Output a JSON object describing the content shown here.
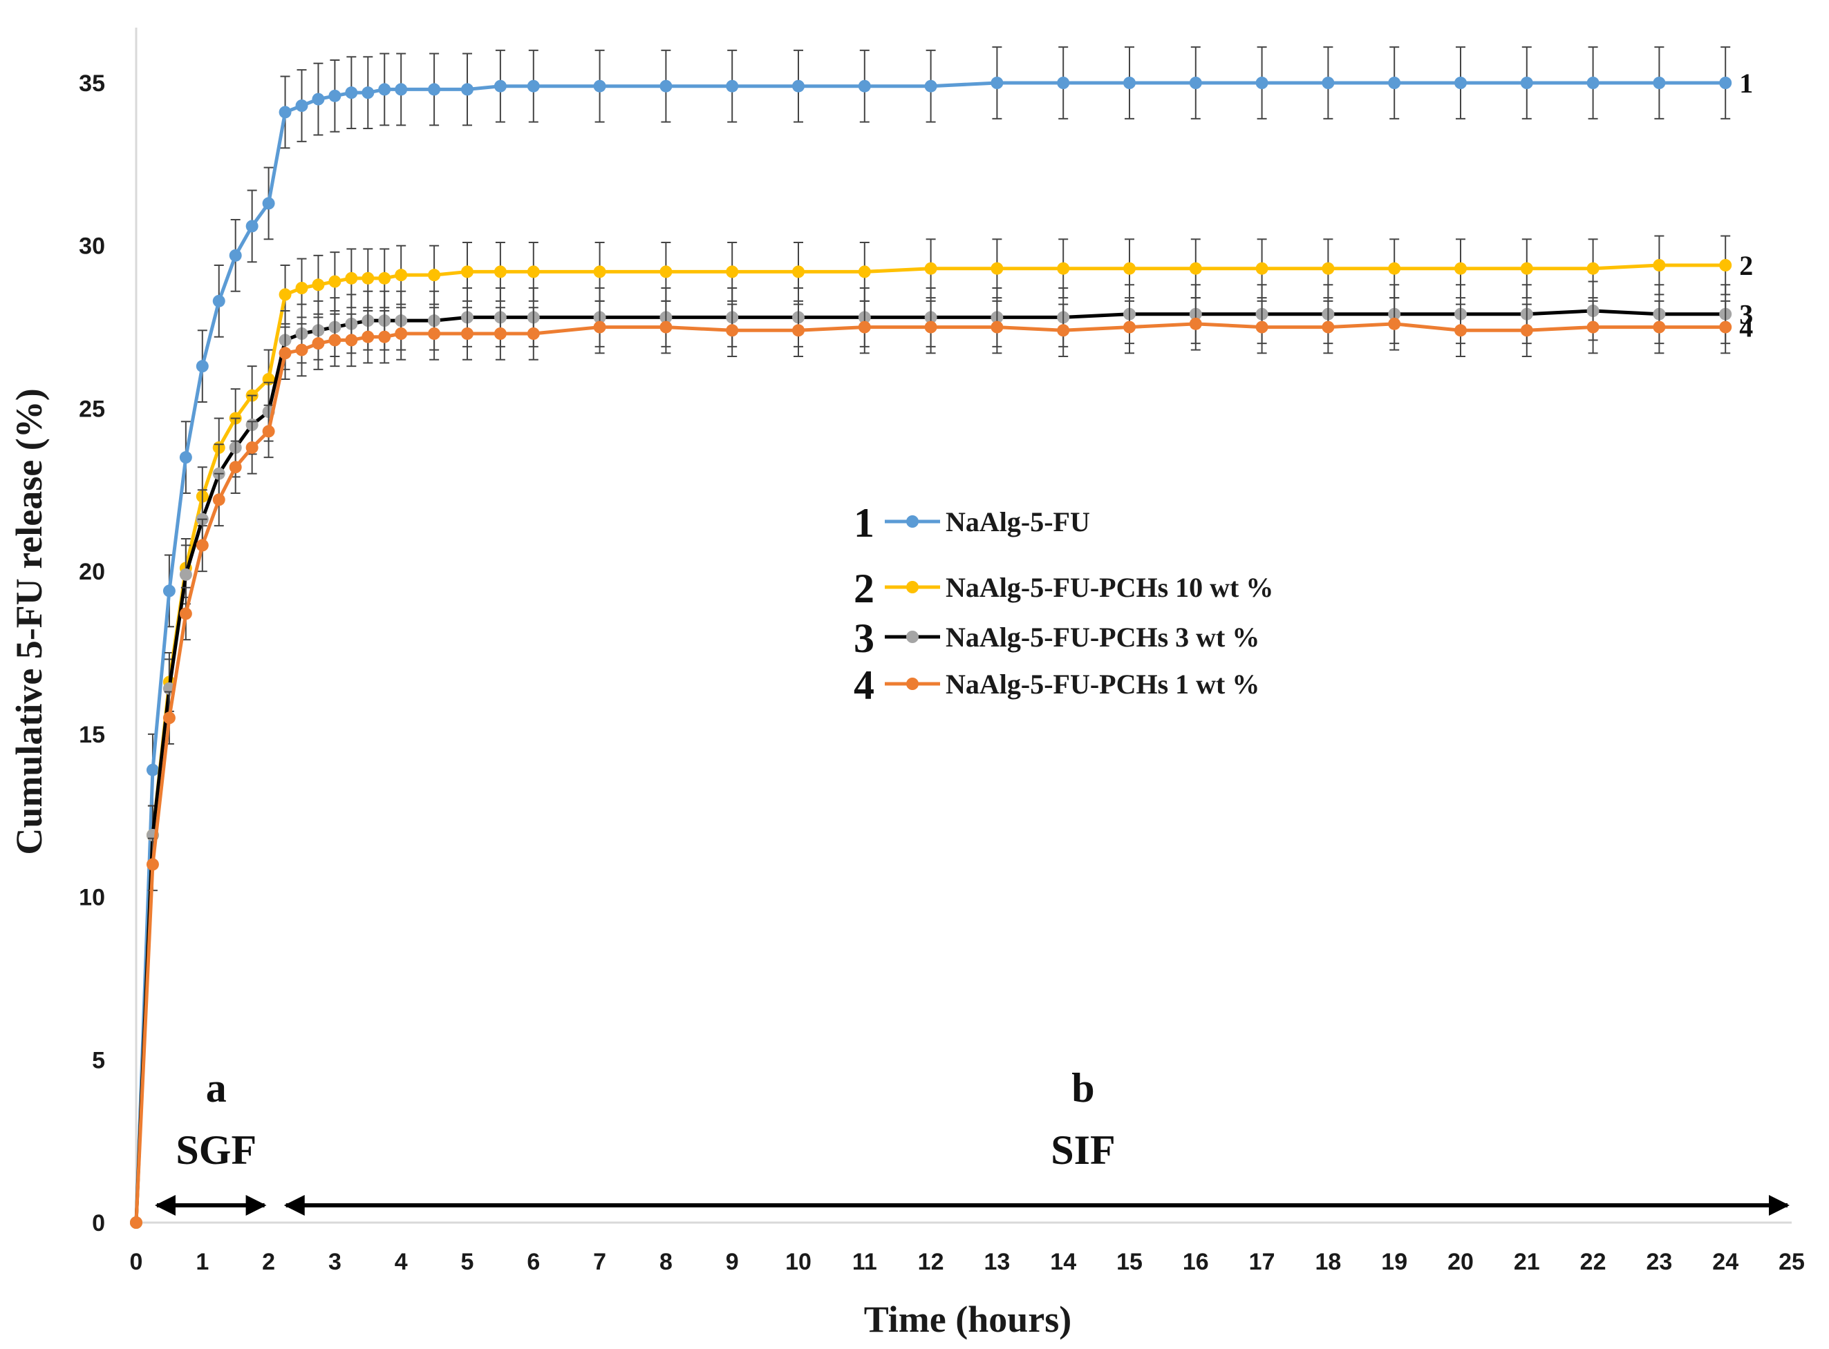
{
  "chart_data": {
    "type": "line",
    "title": "",
    "xlabel": "Time (hours)",
    "ylabel": "Cumulative 5-FU release (%)",
    "xlim": [
      0,
      25
    ],
    "ylim": [
      0,
      36
    ],
    "x_ticks": [
      0,
      1,
      2,
      3,
      4,
      5,
      6,
      7,
      8,
      9,
      10,
      11,
      12,
      13,
      14,
      15,
      16,
      17,
      18,
      19,
      20,
      21,
      22,
      23,
      24,
      25
    ],
    "y_ticks": [
      0,
      5,
      10,
      15,
      20,
      25,
      30,
      35
    ],
    "legend_position": "center",
    "x": [
      0,
      0.25,
      0.5,
      0.75,
      1,
      1.25,
      1.5,
      1.75,
      2,
      2.25,
      2.5,
      2.75,
      3,
      3.25,
      3.5,
      3.75,
      4,
      4.5,
      5,
      5.5,
      6,
      7,
      8,
      9,
      10,
      11,
      12,
      13,
      14,
      15,
      16,
      17,
      18,
      19,
      20,
      21,
      22,
      23,
      24
    ],
    "series": [
      {
        "id": "1",
        "name": "NaAlg-5-FU",
        "color": "#5b9bd5",
        "values": [
          0,
          13.9,
          19.4,
          23.5,
          26.3,
          28.3,
          29.7,
          30.6,
          31.3,
          34.1,
          34.3,
          34.5,
          34.6,
          34.7,
          34.7,
          34.8,
          34.8,
          34.8,
          34.8,
          34.9,
          34.9,
          34.9,
          34.9,
          34.9,
          34.9,
          34.9,
          34.9,
          35.0,
          35.0,
          35.0,
          35.0,
          35.0,
          35.0,
          35.0,
          35.0,
          35.0,
          35.0,
          35.0,
          35.0
        ],
        "error": 1.1
      },
      {
        "id": "2",
        "name": "NaAlg-5-FU-PCHs 10 wt %",
        "color": "#ffc000",
        "values": [
          0,
          11.9,
          16.6,
          20.1,
          22.3,
          23.8,
          24.7,
          25.4,
          25.9,
          28.5,
          28.7,
          28.8,
          28.9,
          29.0,
          29.0,
          29.0,
          29.1,
          29.1,
          29.2,
          29.2,
          29.2,
          29.2,
          29.2,
          29.2,
          29.2,
          29.2,
          29.3,
          29.3,
          29.3,
          29.3,
          29.3,
          29.3,
          29.3,
          29.3,
          29.3,
          29.3,
          29.3,
          29.4,
          29.4
        ],
        "error": 0.9
      },
      {
        "id": "3",
        "name": "NaAlg-5-FU-PCHs 3 wt %",
        "color": "#a5a5a5",
        "line_color": "#000000",
        "values": [
          0,
          11.9,
          16.4,
          19.9,
          21.6,
          23.0,
          23.8,
          24.5,
          24.9,
          27.1,
          27.3,
          27.4,
          27.5,
          27.6,
          27.7,
          27.7,
          27.7,
          27.7,
          27.8,
          27.8,
          27.8,
          27.8,
          27.8,
          27.8,
          27.8,
          27.8,
          27.8,
          27.8,
          27.8,
          27.9,
          27.9,
          27.9,
          27.9,
          27.9,
          27.9,
          27.9,
          28.0,
          27.9,
          27.9
        ],
        "error": 0.9
      },
      {
        "id": "4",
        "name": "NaAlg-5-FU-PCHs 1 wt %",
        "color": "#ed7d31",
        "values": [
          0,
          11.0,
          15.5,
          18.7,
          20.8,
          22.2,
          23.2,
          23.8,
          24.3,
          26.7,
          26.8,
          27.0,
          27.1,
          27.1,
          27.2,
          27.2,
          27.3,
          27.3,
          27.3,
          27.3,
          27.3,
          27.5,
          27.5,
          27.4,
          27.4,
          27.5,
          27.5,
          27.5,
          27.4,
          27.5,
          27.6,
          27.5,
          27.5,
          27.6,
          27.4,
          27.4,
          27.5,
          27.5,
          27.5
        ],
        "error": 0.8
      }
    ],
    "regions": [
      {
        "letter": "a",
        "name": "SGF",
        "from": 0.25,
        "to": 2
      },
      {
        "letter": "b",
        "name": "SIF",
        "from": 2.2,
        "to": 25
      }
    ]
  }
}
